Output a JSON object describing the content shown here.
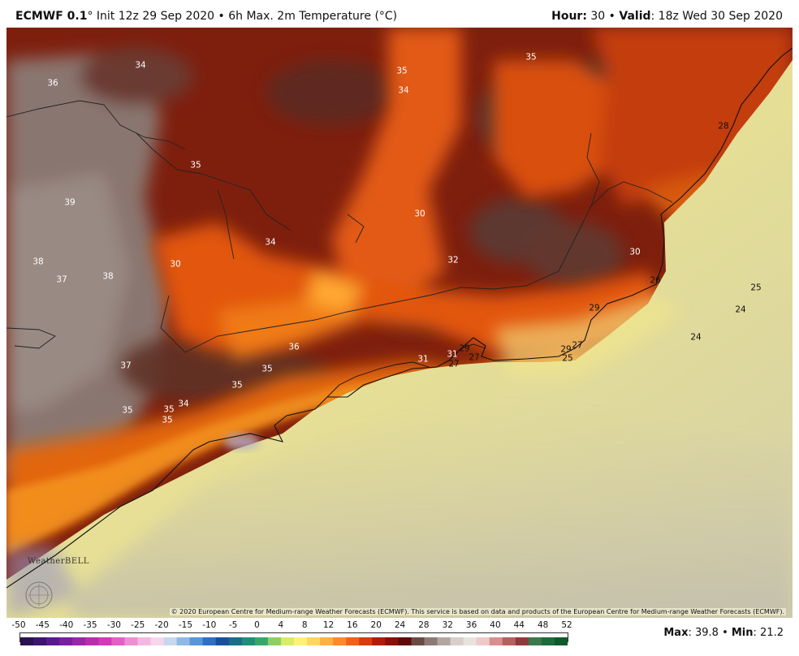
{
  "header": {
    "model": "ECMWF 0.1",
    "init_text": "° Init 12z 29 Sep 2020 • 6h Max. 2m Temperature (°C)",
    "hour_label": "Hour:",
    "hour_value": " 30 • ",
    "valid_label": "Valid",
    "valid_value": ": 18z Wed 30 Sep 2020"
  },
  "map_labels": [
    {
      "t": "34",
      "c": "w"
    },
    {
      "t": "36",
      "c": "w"
    },
    {
      "t": "35",
      "c": "w"
    },
    {
      "t": "34",
      "c": "w"
    },
    {
      "t": "35",
      "c": "w"
    },
    {
      "t": "28",
      "c": "k"
    },
    {
      "t": "35",
      "c": "w"
    },
    {
      "t": "39",
      "c": "w"
    },
    {
      "t": "30",
      "c": "w"
    },
    {
      "t": "34",
      "c": "w"
    },
    {
      "t": "32",
      "c": "w"
    },
    {
      "t": "30",
      "c": "w"
    },
    {
      "t": "38",
      "c": "w"
    },
    {
      "t": "37",
      "c": "w"
    },
    {
      "t": "38",
      "c": "w"
    },
    {
      "t": "30",
      "c": "w"
    },
    {
      "t": "26",
      "c": "k"
    },
    {
      "t": "25",
      "c": "k"
    },
    {
      "t": "29",
      "c": "k"
    },
    {
      "t": "24",
      "c": "k"
    },
    {
      "t": "24",
      "c": "k"
    },
    {
      "t": "36",
      "c": "w"
    },
    {
      "t": "29",
      "c": "k"
    },
    {
      "t": "27",
      "c": "k"
    },
    {
      "t": "31",
      "c": "w"
    },
    {
      "t": "27",
      "c": "k"
    },
    {
      "t": "29",
      "c": "k"
    },
    {
      "t": "27",
      "c": "k"
    },
    {
      "t": "25",
      "c": "k"
    },
    {
      "t": "37",
      "c": "w"
    },
    {
      "t": "35",
      "c": "w"
    },
    {
      "t": "35",
      "c": "w"
    },
    {
      "t": "34",
      "c": "w"
    },
    {
      "t": "35",
      "c": "w"
    },
    {
      "t": "35",
      "c": "w"
    },
    {
      "t": "35",
      "c": "w"
    },
    {
      "t": "31",
      "c": "w"
    }
  ],
  "copyright": "© 2020 European Centre for Medium-range Weather Forecasts (ECMWF). This service is based on data and products of the European Centre for Medium-range Weather Forecasts (ECMWF).",
  "logo_text": "WeatherBELL",
  "scale": {
    "ticks": [
      "-50",
      "-45",
      "-40",
      "-35",
      "-30",
      "-25",
      "-20",
      "-15",
      "-10",
      "-5",
      "0",
      "4",
      "8",
      "12",
      "16",
      "20",
      "24",
      "28",
      "32",
      "36",
      "40",
      "44",
      "48",
      "52"
    ],
    "colors": [
      "#2a1250",
      "#3d1470",
      "#5a1a8c",
      "#7a1f9e",
      "#9a26a8",
      "#b82fae",
      "#d23ab8",
      "#e35fc6",
      "#ee8fd4",
      "#f4b8e2",
      "#f6d6ec",
      "#c6d8f0",
      "#8fb8e6",
      "#5896d8",
      "#2f6fc4",
      "#1b4f9c",
      "#1a6d86",
      "#1f8f7a",
      "#37a86a",
      "#8ccf66",
      "#d8ec6a",
      "#fff07a",
      "#ffd660",
      "#ffb244",
      "#ff8a2a",
      "#f2601a",
      "#d93a10",
      "#b21a0c",
      "#8a0f0a",
      "#5e0b08",
      "#6b4a44",
      "#8e7a74",
      "#b3a6a0",
      "#d8cfcb",
      "#e8e2df",
      "#f0c8c8",
      "#d88f8f",
      "#b65f5f",
      "#8f3a3a",
      "#3a7a4a",
      "#1f6a3a",
      "#0e5a2a"
    ]
  },
  "stats": {
    "max_label": "Max",
    "max_value": ": 39.8 • ",
    "min_label": "Min",
    "min_value": ": 21.2"
  },
  "colors": {
    "hot_brown": "#7a1c0c",
    "very_hot_gray": "#8a7670",
    "orange": "#e65a10",
    "ocean_yellow": "#f2e68a",
    "ocean_gray": "#c8c2a8",
    "coastline": "#111111"
  }
}
